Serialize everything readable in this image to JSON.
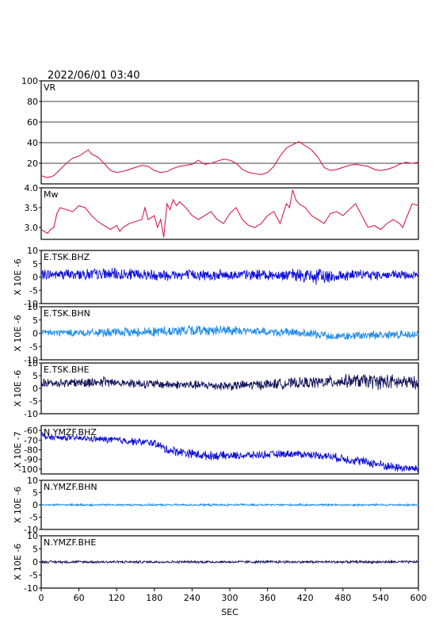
{
  "header": {
    "datetime": "2022/06/01 03:40"
  },
  "colors": {
    "vr": "#d81e4b",
    "mw": "#d81e4b",
    "dark_blue": "#1010d8",
    "light_blue": "#1e8ce6",
    "navy": "#14145a",
    "grid": "#000000"
  },
  "chart_data": [
    {
      "type": "line",
      "label": "VR",
      "ylim": [
        0,
        100
      ],
      "yticks": [
        20,
        40,
        60,
        80,
        100
      ],
      "grid": true,
      "color_key": "vr",
      "x": [
        0,
        10,
        20,
        30,
        40,
        50,
        60,
        70,
        75,
        80,
        90,
        100,
        110,
        120,
        130,
        140,
        150,
        160,
        170,
        180,
        190,
        200,
        210,
        220,
        230,
        240,
        250,
        260,
        270,
        280,
        290,
        300,
        310,
        320,
        330,
        340,
        350,
        360,
        370,
        380,
        390,
        400,
        410,
        420,
        430,
        440,
        450,
        460,
        470,
        480,
        490,
        500,
        510,
        520,
        530,
        540,
        550,
        560,
        570,
        580,
        590,
        600
      ],
      "y": [
        8,
        6,
        8,
        14,
        20,
        25,
        27,
        31,
        33,
        29,
        26,
        20,
        13,
        11,
        12,
        14,
        16,
        18,
        17,
        13,
        11,
        12,
        15,
        17,
        18,
        19,
        23,
        19,
        20,
        22,
        24,
        23,
        20,
        14,
        11,
        10,
        9,
        11,
        17,
        27,
        35,
        38,
        41,
        37,
        33,
        26,
        16,
        13,
        14,
        16,
        18,
        19,
        18,
        17,
        14,
        13,
        14,
        16,
        19,
        21,
        20,
        21
      ]
    },
    {
      "type": "line",
      "label": "Mw",
      "ylim": [
        2.7,
        4.0
      ],
      "yticks": [
        "3.0",
        "3.5",
        "4.0"
      ],
      "grid": false,
      "color_key": "mw",
      "x": [
        0,
        10,
        15,
        20,
        25,
        30,
        40,
        50,
        60,
        70,
        80,
        90,
        100,
        110,
        120,
        125,
        130,
        140,
        150,
        160,
        165,
        170,
        180,
        185,
        190,
        195,
        200,
        205,
        210,
        215,
        220,
        230,
        240,
        250,
        260,
        270,
        280,
        290,
        300,
        310,
        320,
        330,
        340,
        350,
        360,
        370,
        380,
        390,
        395,
        400,
        405,
        410,
        420,
        430,
        440,
        450,
        460,
        470,
        480,
        490,
        500,
        510,
        520,
        530,
        540,
        550,
        560,
        570,
        575,
        580,
        590,
        600
      ],
      "y": [
        2.95,
        2.85,
        2.95,
        3.0,
        3.35,
        3.5,
        3.45,
        3.4,
        3.55,
        3.5,
        3.3,
        3.15,
        3.05,
        2.95,
        3.05,
        2.9,
        3.0,
        3.1,
        3.15,
        3.2,
        3.5,
        3.2,
        3.3,
        3.0,
        3.2,
        2.75,
        3.6,
        3.45,
        3.7,
        3.55,
        3.65,
        3.5,
        3.3,
        3.2,
        3.3,
        3.4,
        3.2,
        3.1,
        3.35,
        3.5,
        3.2,
        3.05,
        3.0,
        3.1,
        3.3,
        3.4,
        3.1,
        3.6,
        3.5,
        3.95,
        3.7,
        3.6,
        3.5,
        3.3,
        3.2,
        3.1,
        3.35,
        3.4,
        3.3,
        3.45,
        3.6,
        3.3,
        3.0,
        3.05,
        2.95,
        3.1,
        3.2,
        3.1,
        3.0,
        3.2,
        3.6,
        3.55
      ]
    },
    {
      "type": "line",
      "label": "E.TSK.BHZ",
      "ylabel": "X 10E -6",
      "ylim": [
        -10,
        10
      ],
      "yticks": [
        "-10",
        "-5",
        "0",
        "5",
        "10"
      ],
      "color_key": "dark_blue",
      "envelope": {
        "x": [
          0,
          100,
          200,
          300,
          400,
          440,
          470,
          500,
          600
        ],
        "amp": [
          2.0,
          2.3,
          2.3,
          2.0,
          2.2,
          3.3,
          2.6,
          2.0,
          1.8
        ],
        "mean": [
          1.0,
          1.0,
          0.8,
          0.8,
          0.8,
          0.0,
          0.5,
          0.8,
          0.6
        ]
      }
    },
    {
      "type": "line",
      "label": "E.TSK.BHN",
      "ylabel": "X 10E -6",
      "ylim": [
        -10,
        10
      ],
      "yticks": [
        "-10",
        "-5",
        "0",
        "5",
        "10"
      ],
      "color_key": "light_blue",
      "envelope": {
        "x": [
          0,
          100,
          200,
          260,
          330,
          400,
          480,
          530,
          600
        ],
        "amp": [
          1.3,
          1.6,
          2.1,
          2.0,
          1.7,
          1.6,
          1.6,
          1.8,
          1.3
        ],
        "mean": [
          0.2,
          0.2,
          0.8,
          1.2,
          0.8,
          0.2,
          -1.2,
          -0.7,
          -0.3
        ]
      }
    },
    {
      "type": "line",
      "label": "E.TSK.BHE",
      "ylabel": "X 10E -6",
      "ylim": [
        -10,
        10
      ],
      "yticks": [
        "-10",
        "-5",
        "0",
        "5",
        "10"
      ],
      "color_key": "navy",
      "envelope": {
        "x": [
          0,
          100,
          200,
          300,
          400,
          500,
          550,
          600
        ],
        "amp": [
          1.8,
          2.0,
          1.8,
          1.9,
          2.2,
          2.8,
          3.3,
          2.5
        ],
        "mean": [
          2.0,
          2.5,
          1.5,
          1.0,
          2.0,
          3.0,
          2.5,
          2.2
        ]
      }
    },
    {
      "type": "line",
      "label": "N.YMZF.BHZ",
      "ylabel": "X 10E -7",
      "ylim": [
        -105,
        -55
      ],
      "yticks": [
        "-60",
        "-70",
        "-80",
        "-90",
        "-100"
      ],
      "color_key": "dark_blue",
      "envelope": {
        "x": [
          0,
          10,
          60,
          120,
          180,
          200,
          260,
          320,
          400,
          450,
          480,
          520,
          560,
          600
        ],
        "amp": [
          5,
          3,
          3,
          4,
          4,
          5,
          5,
          4,
          4,
          4,
          5,
          5,
          5,
          4
        ],
        "mean": [
          -65,
          -67,
          -68,
          -70,
          -73,
          -80,
          -86,
          -86,
          -84,
          -86,
          -89,
          -93,
          -98,
          -100
        ]
      }
    },
    {
      "type": "line",
      "label": "N.YMZF.BHN",
      "ylabel": "X 10E -6",
      "ylim": [
        -10,
        10
      ],
      "yticks": [
        "-10",
        "-5",
        "0",
        "5",
        "10"
      ],
      "color_key": "light_blue",
      "envelope": {
        "x": [
          0,
          600
        ],
        "amp": [
          0.4,
          0.4
        ],
        "mean": [
          0,
          0
        ]
      }
    },
    {
      "type": "line",
      "label": "N.YMZF.BHE",
      "ylabel": "X 10E -6",
      "ylim": [
        -10,
        10
      ],
      "yticks": [
        "-10",
        "-5",
        "0",
        "5",
        "10"
      ],
      "color_key": "navy",
      "envelope": {
        "x": [
          0,
          600
        ],
        "amp": [
          0.5,
          0.5
        ],
        "mean": [
          0,
          0
        ]
      }
    }
  ],
  "x_axis": {
    "label": "SEC",
    "ticks": [
      "0",
      "60",
      "120",
      "180",
      "240",
      "300",
      "360",
      "420",
      "480",
      "540",
      "600"
    ],
    "range": [
      0,
      600
    ]
  }
}
